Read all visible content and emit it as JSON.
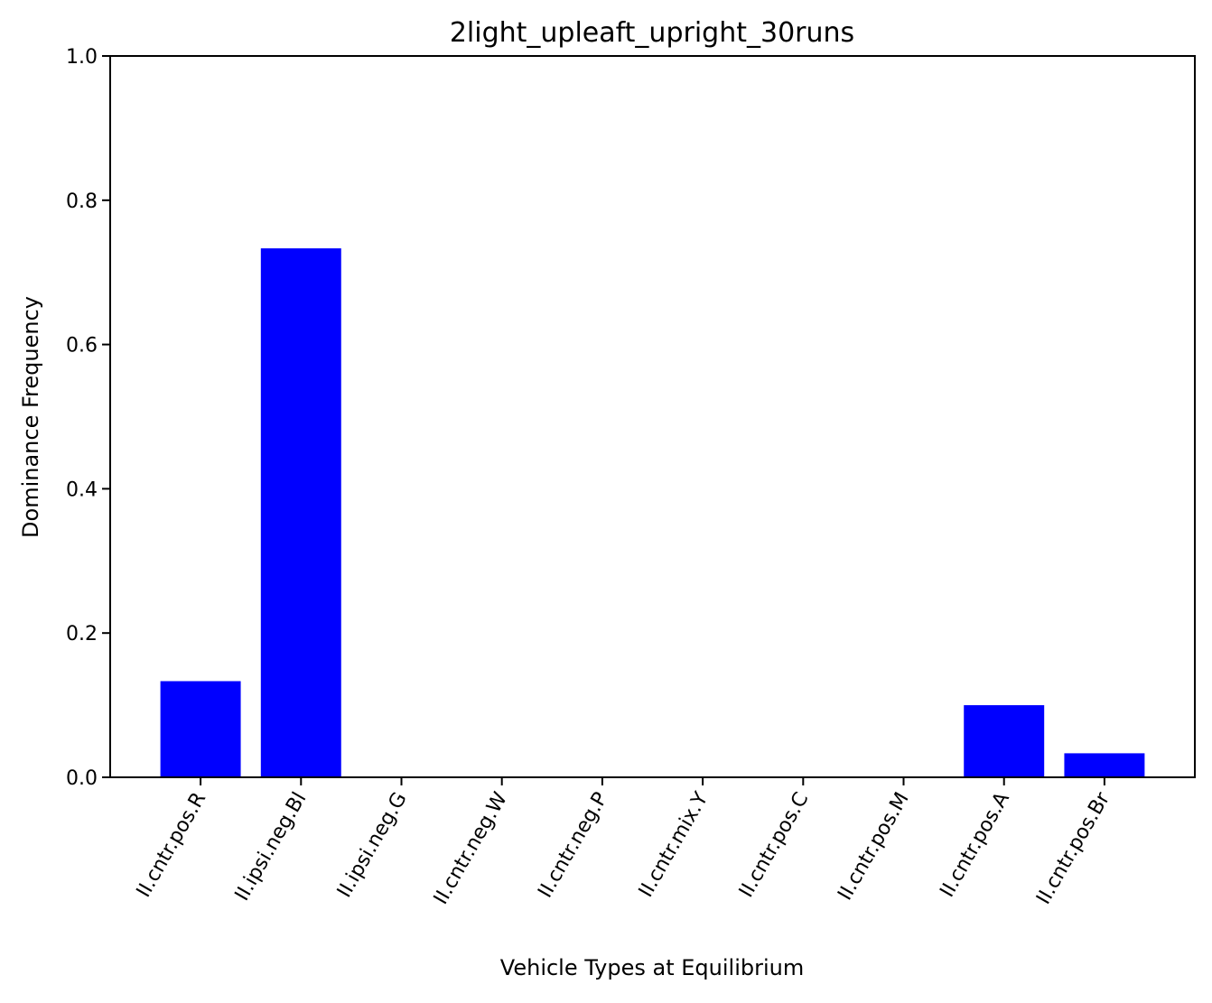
{
  "chart_data": {
    "type": "bar",
    "title": "2light_upleaft_upright_30runs",
    "xlabel": "Vehicle Types at Equilibrium",
    "ylabel": "Dominance Frequency",
    "categories": [
      "II.cntr.pos.R",
      "II.ipsi.neg.Bl",
      "II.ipsi.neg.G",
      "II.cntr.neg.W",
      "II.cntr.neg.P",
      "II.cntr.mix.Y",
      "II.cntr.pos.C",
      "II.cntr.pos.M",
      "II.cntr.pos.A",
      "II.cntr.pos.Br"
    ],
    "values": [
      0.1333,
      0.7333,
      0,
      0,
      0,
      0,
      0,
      0,
      0.1,
      0.0333
    ],
    "ylim": [
      0,
      1
    ],
    "yticks": [
      0.0,
      0.2,
      0.4,
      0.6,
      0.8,
      1.0
    ],
    "ytick_labels": [
      "0.0",
      "0.2",
      "0.4",
      "0.6",
      "0.8",
      "1.0"
    ],
    "bar_color": "#0000ff",
    "grid": false,
    "legend": "none",
    "xtick_rotation_deg": -60
  }
}
